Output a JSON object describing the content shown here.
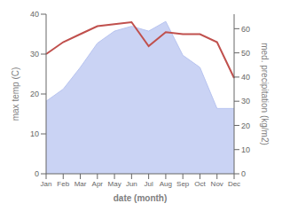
{
  "chart_data": {
    "type": "line",
    "categories": [
      "Jan",
      "Feb",
      "Mar",
      "Apr",
      "May",
      "Jun",
      "Jul",
      "Aug",
      "Sep",
      "Oct",
      "Nov",
      "Dec"
    ],
    "xlabel": "date (month)",
    "ylabel": "max temp (C)",
    "y2label": "med. precipitation (kg/m2)",
    "ylim": [
      0,
      40
    ],
    "yticks": [
      0,
      10,
      20,
      30,
      40
    ],
    "y2lim": [
      0,
      66
    ],
    "y2ticks": [
      0,
      10,
      20,
      30,
      40,
      50,
      60
    ],
    "grid": false,
    "series": [
      {
        "type": "area",
        "axis": "y2",
        "color": "#b8c4f0",
        "values": [
          30,
          35,
          44,
          54,
          59,
          61,
          59,
          63,
          49,
          44,
          27,
          27
        ]
      },
      {
        "type": "line",
        "color": "#c0504d",
        "values": [
          30,
          33,
          35,
          37.0,
          37.5,
          38.0,
          32.0,
          35.5,
          35.0,
          35.0,
          33.0,
          24.0
        ]
      }
    ]
  }
}
